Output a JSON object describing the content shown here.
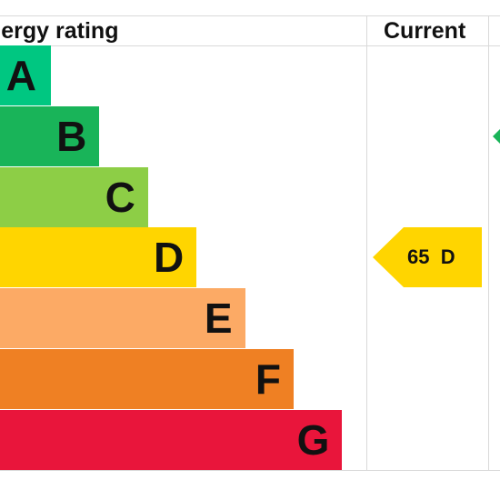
{
  "header": {
    "title": "nergy rating",
    "current_label": "Current"
  },
  "chart_data": {
    "type": "bar",
    "categories": [
      "A",
      "B",
      "C",
      "D",
      "E",
      "F",
      "G"
    ],
    "colors": [
      "#00c781",
      "#19b459",
      "#8dce46",
      "#ffd500",
      "#fcaa65",
      "#ef8023",
      "#e9153b"
    ],
    "current": {
      "value": 65,
      "band": "D",
      "label": "65  D",
      "color": "#ffd500"
    },
    "potential": {
      "band": "B",
      "color": "#19b459"
    }
  }
}
